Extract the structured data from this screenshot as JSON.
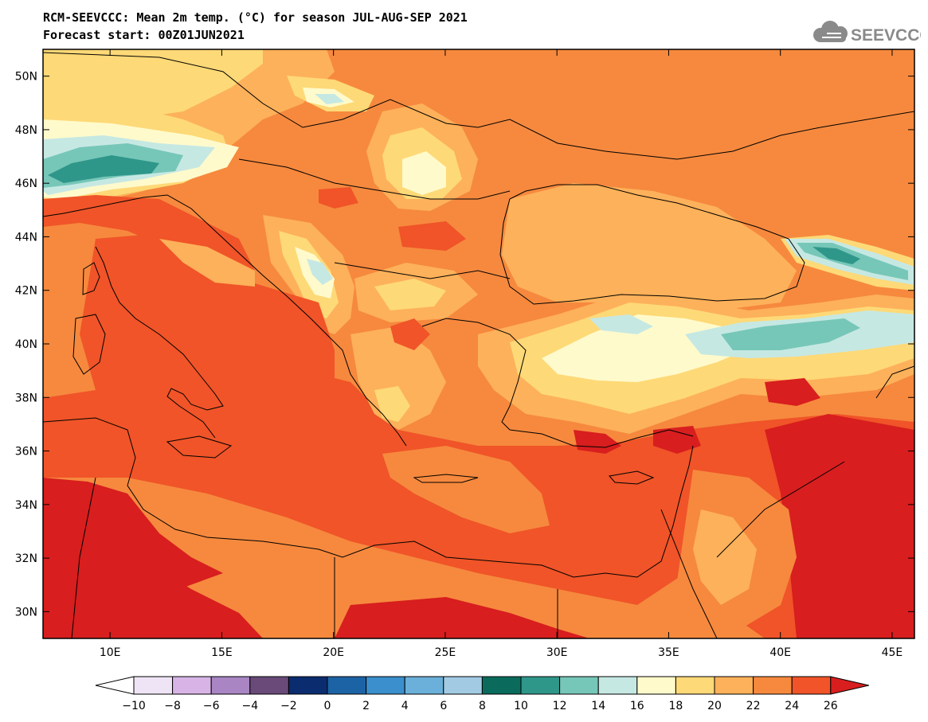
{
  "header": {
    "line1": "RCM-SEEVCCC: Mean 2m temp. (°C) for season JUL-AUG-SEP 2021",
    "line2": "Forecast start: 00Z01JUN2021"
  },
  "logo": {
    "text": "SEEVCCC",
    "icon": "cloud-icon",
    "color": "#8a8a8a"
  },
  "map": {
    "lon_range": [
      7,
      46
    ],
    "lat_range": [
      29,
      51
    ],
    "lat_ticks": [
      {
        "value": 30,
        "label": "30N"
      },
      {
        "value": 32,
        "label": "32N"
      },
      {
        "value": 34,
        "label": "34N"
      },
      {
        "value": 36,
        "label": "36N"
      },
      {
        "value": 38,
        "label": "38N"
      },
      {
        "value": 40,
        "label": "40N"
      },
      {
        "value": 42,
        "label": "42N"
      },
      {
        "value": 44,
        "label": "44N"
      },
      {
        "value": 46,
        "label": "46N"
      },
      {
        "value": 48,
        "label": "48N"
      },
      {
        "value": 50,
        "label": "50N"
      }
    ],
    "lon_ticks": [
      {
        "value": 10,
        "label": "10E"
      },
      {
        "value": 15,
        "label": "15E"
      },
      {
        "value": 20,
        "label": "20E"
      },
      {
        "value": 25,
        "label": "25E"
      },
      {
        "value": 30,
        "label": "30E"
      },
      {
        "value": 35,
        "label": "35E"
      },
      {
        "value": 40,
        "label": "40E"
      },
      {
        "value": 45,
        "label": "45E"
      }
    ]
  },
  "colorbar": {
    "levels": [
      "-10",
      "-8",
      "-6",
      "-4",
      "-2",
      "0",
      "2",
      "4",
      "6",
      "8",
      "10",
      "12",
      "14",
      "16",
      "18",
      "20",
      "22",
      "24",
      "26"
    ],
    "under_color": "#ffffff",
    "over_color": "#d81e1e",
    "colors": [
      "#efe4f6",
      "#d8b4e6",
      "#a985c3",
      "#6a4a78",
      "#0b2c6e",
      "#1c63a6",
      "#3a8fcc",
      "#6bb0da",
      "#a2cbe3",
      "#0a6b5c",
      "#2f968a",
      "#76c7b8",
      "#c6e8e3",
      "#fffacb",
      "#fed977",
      "#fdb15a",
      "#f6893e",
      "#f05428"
    ]
  }
}
